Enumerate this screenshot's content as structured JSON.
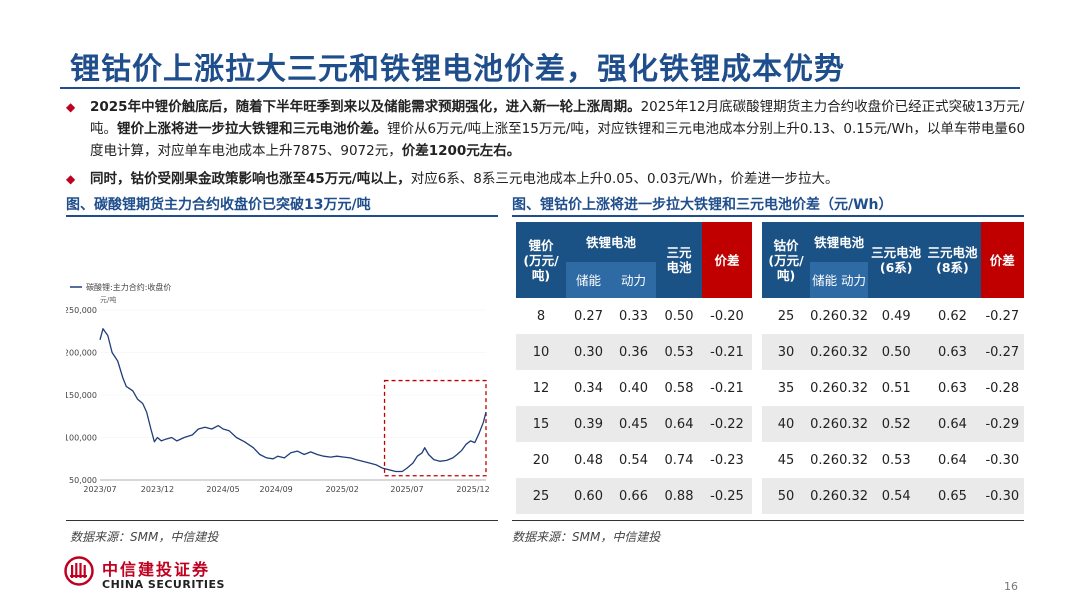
{
  "title": "锂钴价上涨拉大三元和铁锂电池价差，强化铁锂成本优势",
  "bullets": [
    {
      "segments": [
        {
          "text": "2025年中锂价触底后，随着下半年旺季到来以及储能需求预期强化，进入新一轮上涨周期。",
          "bold": true
        },
        {
          "text": "2025年12月底碳酸锂期货主力合约收盘价已经正式突破13万元/吨。",
          "bold": false
        },
        {
          "text": "锂价上涨将进一步拉大铁锂和三元电池价差。",
          "bold": true
        },
        {
          "text": "锂价从6万元/吨上涨至15万元/吨，对应铁锂和三元电池成本分别上升0.13、0.15元/Wh，以单车带电量60度电计算，对应单车电池成本上升7875、9072元，",
          "bold": false
        },
        {
          "text": "价差1200元左右。",
          "bold": true
        }
      ]
    },
    {
      "segments": [
        {
          "text": "同时，钴价受刚果金政策影响也涨至45万元/吨以上，",
          "bold": true
        },
        {
          "text": "对应6系、8系三元电池成本上升0.05、0.03元/Wh，价差进一步拉大。",
          "bold": false
        }
      ]
    }
  ],
  "figures": {
    "left_title": "图、碳酸锂期货主力合约收盘价已突破13万元/吨",
    "right_title": "图、锂钴价上涨将进一步拉大铁锂和三元电池价差（元/Wh）"
  },
  "chart_data": {
    "type": "line",
    "legend": "碳酸锂:主力合约:收盘价",
    "unit": "元/吨",
    "ylim": [
      50000,
      250000
    ],
    "yticks": [
      50000,
      100000,
      150000,
      200000,
      250000
    ],
    "ytick_labels": [
      "50,000",
      "100,000",
      "150,000",
      "200,000",
      "250,000"
    ],
    "xlim": [
      "2023-07-21",
      "2025-12-31"
    ],
    "xtick_labels": [
      {
        "date": "2023-07-21",
        "label": "2023/07"
      },
      {
        "date": "2023-12-01",
        "label": "2023/12"
      },
      {
        "date": "2024-05-01",
        "label": "2024/05"
      },
      {
        "date": "2024-09-01",
        "label": "2024/09"
      },
      {
        "date": "2025-02-01",
        "label": "2025/02"
      },
      {
        "date": "2025-07-01",
        "label": "2025/07"
      },
      {
        "date": "2025-12-01",
        "label": "2025/12"
      }
    ],
    "highlight_range": {
      "x": [
        "2025-05-10",
        "2025-12-31"
      ],
      "y": [
        55000,
        167000
      ]
    },
    "series": [
      {
        "name": "碳酸锂:主力合约:收盘价",
        "color": "#1f3e7a",
        "points": [
          [
            "2023-07-21",
            215000
          ],
          [
            "2023-07-28",
            228000
          ],
          [
            "2023-08-08",
            220000
          ],
          [
            "2023-08-18",
            200000
          ],
          [
            "2023-08-31",
            190000
          ],
          [
            "2023-09-12",
            170000
          ],
          [
            "2023-09-20",
            160000
          ],
          [
            "2023-10-05",
            155000
          ],
          [
            "2023-10-16",
            145000
          ],
          [
            "2023-10-28",
            140000
          ],
          [
            "2023-11-06",
            130000
          ],
          [
            "2023-11-16",
            110000
          ],
          [
            "2023-11-24",
            95000
          ],
          [
            "2023-12-01",
            100000
          ],
          [
            "2023-12-10",
            96000
          ],
          [
            "2023-12-20",
            98000
          ],
          [
            "2024-01-03",
            100000
          ],
          [
            "2024-01-15",
            96000
          ],
          [
            "2024-02-01",
            100000
          ],
          [
            "2024-02-20",
            103000
          ],
          [
            "2024-03-05",
            110000
          ],
          [
            "2024-03-20",
            112000
          ],
          [
            "2024-04-05",
            110000
          ],
          [
            "2024-04-20",
            114000
          ],
          [
            "2024-05-01",
            110000
          ],
          [
            "2024-05-15",
            108000
          ],
          [
            "2024-06-01",
            100000
          ],
          [
            "2024-06-20",
            95000
          ],
          [
            "2024-07-10",
            88000
          ],
          [
            "2024-07-25",
            80000
          ],
          [
            "2024-08-10",
            76000
          ],
          [
            "2024-08-25",
            75000
          ],
          [
            "2024-09-05",
            78000
          ],
          [
            "2024-09-20",
            76000
          ],
          [
            "2024-10-05",
            82000
          ],
          [
            "2024-10-20",
            84000
          ],
          [
            "2024-11-05",
            80000
          ],
          [
            "2024-11-20",
            83000
          ],
          [
            "2024-12-05",
            80000
          ],
          [
            "2024-12-20",
            78000
          ],
          [
            "2025-01-05",
            77000
          ],
          [
            "2025-01-20",
            78000
          ],
          [
            "2025-02-05",
            77000
          ],
          [
            "2025-02-20",
            76000
          ],
          [
            "2025-03-05",
            74000
          ],
          [
            "2025-03-20",
            72000
          ],
          [
            "2025-04-05",
            70000
          ],
          [
            "2025-04-20",
            68000
          ],
          [
            "2025-05-05",
            64000
          ],
          [
            "2025-05-20",
            62000
          ],
          [
            "2025-06-05",
            60000
          ],
          [
            "2025-06-20",
            60000
          ],
          [
            "2025-07-01",
            64000
          ],
          [
            "2025-07-15",
            70000
          ],
          [
            "2025-07-25",
            78000
          ],
          [
            "2025-08-05",
            82000
          ],
          [
            "2025-08-11",
            88000
          ],
          [
            "2025-08-20",
            80000
          ],
          [
            "2025-09-01",
            74000
          ],
          [
            "2025-09-15",
            72000
          ],
          [
            "2025-10-01",
            73000
          ],
          [
            "2025-10-15",
            76000
          ],
          [
            "2025-10-25",
            80000
          ],
          [
            "2025-11-05",
            85000
          ],
          [
            "2025-11-15",
            92000
          ],
          [
            "2025-11-25",
            96000
          ],
          [
            "2025-12-05",
            94000
          ],
          [
            "2025-12-15",
            105000
          ],
          [
            "2025-12-25",
            118000
          ],
          [
            "2025-12-31",
            130000
          ]
        ]
      }
    ]
  },
  "table1": {
    "headers": {
      "price": "锂价\n(万元/吨)",
      "lfp_group": "铁锂电池",
      "storage": "储能",
      "power": "动力",
      "ncm": "三元\n电池",
      "diff": "价差"
    },
    "rows": [
      [
        "8",
        "0.27",
        "0.33",
        "0.50",
        "-0.20"
      ],
      [
        "10",
        "0.30",
        "0.36",
        "0.53",
        "-0.21"
      ],
      [
        "12",
        "0.34",
        "0.40",
        "0.58",
        "-0.21"
      ],
      [
        "15",
        "0.39",
        "0.45",
        "0.64",
        "-0.22"
      ],
      [
        "20",
        "0.48",
        "0.54",
        "0.74",
        "-0.23"
      ],
      [
        "25",
        "0.60",
        "0.66",
        "0.88",
        "-0.25"
      ]
    ]
  },
  "table2": {
    "headers": {
      "price": "钴价\n(万元/吨)",
      "lfp_group": "铁锂电池",
      "storage": "储能",
      "power": "动力",
      "ncm6": "三元电池\n(6系)",
      "ncm8": "三元电池\n(8系)",
      "diff": "价差"
    },
    "rows": [
      [
        "25",
        "0.26",
        "0.32",
        "0.49",
        "0.62",
        "-0.27"
      ],
      [
        "30",
        "0.26",
        "0.32",
        "0.50",
        "0.63",
        "-0.27"
      ],
      [
        "35",
        "0.26",
        "0.32",
        "0.51",
        "0.63",
        "-0.28"
      ],
      [
        "40",
        "0.26",
        "0.32",
        "0.52",
        "0.64",
        "-0.29"
      ],
      [
        "45",
        "0.26",
        "0.32",
        "0.53",
        "0.64",
        "-0.30"
      ],
      [
        "50",
        "0.26",
        "0.32",
        "0.54",
        "0.65",
        "-0.30"
      ]
    ]
  },
  "sources": {
    "left": "数据来源：SMM，中信建投",
    "right": "数据来源：SMM，中信建投"
  },
  "footer": {
    "logo_cn": "中信建投证券",
    "logo_en": "CHINA SECURITIES",
    "page": "16"
  },
  "colors": {
    "brand_blue": "#1f4e8c",
    "header_blue": "#1b5285",
    "accent_red": "#c00000",
    "line": "#1f3e7a"
  }
}
